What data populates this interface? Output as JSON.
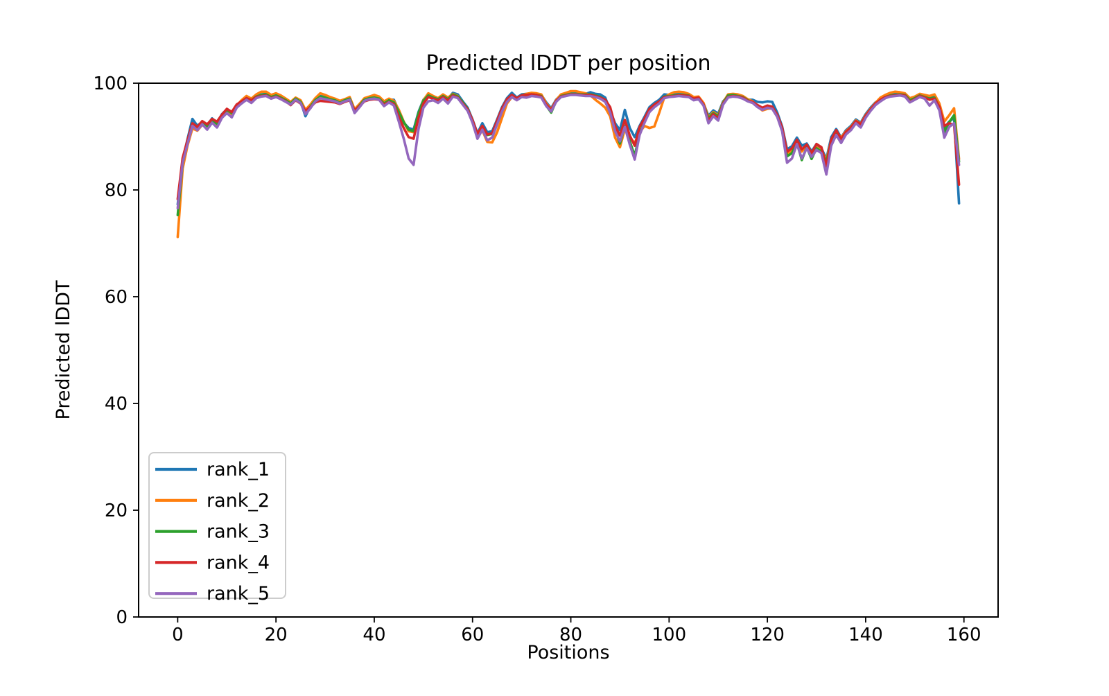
{
  "figure": {
    "title": "Predicted lDDT per position",
    "xlabel": "Positions",
    "ylabel": "Predicted lDDT",
    "background_color": "#ffffff",
    "spine_color": "#000000"
  },
  "axes": {
    "x_tick_labels": [
      "0",
      "20",
      "40",
      "60",
      "80",
      "100",
      "120",
      "140",
      "160"
    ],
    "x_tick_values": [
      0,
      20,
      40,
      60,
      80,
      100,
      120,
      140,
      160
    ],
    "y_tick_labels": [
      "0",
      "20",
      "40",
      "60",
      "80",
      "100"
    ],
    "y_tick_values": [
      0,
      20,
      40,
      60,
      80,
      100
    ]
  },
  "legend": {
    "position": "lower left",
    "entries": [
      {
        "label": "rank_1",
        "color": "#1f77b4"
      },
      {
        "label": "rank_2",
        "color": "#ff7f0e"
      },
      {
        "label": "rank_3",
        "color": "#2ca02c"
      },
      {
        "label": "rank_4",
        "color": "#d62728"
      },
      {
        "label": "rank_5",
        "color": "#9467bd"
      }
    ]
  },
  "chart_data": {
    "type": "line",
    "title": "Predicted lDDT per position",
    "xlabel": "Positions",
    "ylabel": "Predicted lDDT",
    "grid": false,
    "legend_position": "lower left",
    "xlim": [
      -7.95,
      166.95
    ],
    "ylim": [
      0,
      100
    ],
    "x_start": 0,
    "x_step": 1,
    "n_points": 160,
    "series": [
      {
        "name": "rank_1",
        "color": "#1f77b4",
        "values": [
          77.3,
          85.6,
          89.5,
          93.3,
          92,
          92.8,
          92.1,
          93.4,
          92.6,
          94.2,
          95.1,
          94.5,
          95.9,
          96.6,
          97.3,
          96.9,
          97.6,
          97.9,
          98,
          97.5,
          97.8,
          97.4,
          96.9,
          96.3,
          97.2,
          96.6,
          93.8,
          95.7,
          96.9,
          97.6,
          97.4,
          97.1,
          96.9,
          96.4,
          96.9,
          97.2,
          94.5,
          95.9,
          96.9,
          97.2,
          97.3,
          97.2,
          96.3,
          96.9,
          96.9,
          94.8,
          92.6,
          91.6,
          91.3,
          94.6,
          96.9,
          97.9,
          97.4,
          97.1,
          97.8,
          97.1,
          98.2,
          97.9,
          96.6,
          95.4,
          93.2,
          90.6,
          92.5,
          90.8,
          91,
          93.2,
          95.5,
          97.2,
          98.2,
          97.3,
          97.9,
          98,
          98.1,
          98,
          97.8,
          96.4,
          95.3,
          96.9,
          97.8,
          98,
          98.3,
          98.2,
          98.1,
          98,
          98.3,
          98,
          97.9,
          97.3,
          94.9,
          92.5,
          91.2,
          95,
          91.6,
          89.9,
          92,
          93.7,
          95.5,
          96.3,
          96.9,
          97.9,
          97.8,
          97.9,
          98,
          97.9,
          97.8,
          97.2,
          97.4,
          96.2,
          93.9,
          94.9,
          94.3,
          96.6,
          97.6,
          97.8,
          97.7,
          97.5,
          96.9,
          96.9,
          96.5,
          96.4,
          96.6,
          96.5,
          94.5,
          91.9,
          87.6,
          88.2,
          89.8,
          88.3,
          88.7,
          87.2,
          88.6,
          87.8,
          85.8,
          89.9,
          91.4,
          89.8,
          91.2,
          92,
          93.2,
          92.6,
          94.2,
          95.4,
          96.4,
          97,
          97.6,
          97.9,
          98,
          98.1,
          97.9,
          97,
          97.4,
          97.9,
          97.6,
          97.2,
          97.4,
          95.8,
          91.6,
          92.8,
          93.5,
          77.5
        ]
      },
      {
        "name": "rank_2",
        "color": "#ff7f0e",
        "values": [
          71.2,
          84,
          88.3,
          91.5,
          91.1,
          92.2,
          91.7,
          92.8,
          92.2,
          93.8,
          94.9,
          94.2,
          95.8,
          96.8,
          97.6,
          97.1,
          97.9,
          98.4,
          98.4,
          97.8,
          98.1,
          97.7,
          97.1,
          96.5,
          97.3,
          96.8,
          95,
          96,
          97.2,
          98.1,
          97.8,
          97.4,
          97.1,
          96.7,
          97,
          97.4,
          95.1,
          96.1,
          97.2,
          97.5,
          97.8,
          97.5,
          96.6,
          97.1,
          96.7,
          95,
          92.8,
          91,
          90.8,
          94.3,
          96.8,
          98.1,
          97.6,
          97.2,
          97.9,
          97.3,
          98,
          97.6,
          96.3,
          95,
          92.8,
          90,
          91.2,
          89,
          88.9,
          90.8,
          93.5,
          96.2,
          97.4,
          97,
          97.7,
          98,
          98.2,
          98.1,
          97.9,
          96.2,
          95.1,
          96.8,
          97.9,
          98.2,
          98.5,
          98.5,
          98.3,
          98.1,
          97.7,
          96.9,
          96.2,
          95.4,
          93.8,
          89.8,
          88,
          91.4,
          89.8,
          88.8,
          90.8,
          92,
          91.6,
          91.9,
          94.5,
          97.3,
          97.9,
          98.3,
          98.4,
          98.3,
          98,
          97.4,
          97.5,
          96.3,
          93.6,
          94.6,
          94,
          96.4,
          97.9,
          98,
          97.9,
          97.6,
          97,
          96.6,
          95.6,
          94.9,
          95.2,
          95.3,
          93.8,
          91.2,
          86.8,
          87.4,
          89.2,
          87.2,
          88.3,
          86.6,
          88,
          87.4,
          85.6,
          89.3,
          90.8,
          89.8,
          91,
          91.8,
          93,
          92.4,
          94,
          95.2,
          96.3,
          97.3,
          97.8,
          98.2,
          98.4,
          98.3,
          98.1,
          97.2,
          97.5,
          98,
          97.8,
          97.6,
          97.9,
          96.2,
          92.8,
          94,
          95.3,
          85.8
        ]
      },
      {
        "name": "rank_3",
        "color": "#2ca02c",
        "values": [
          75.3,
          85,
          88.9,
          92.2,
          91.5,
          92.6,
          92,
          93.1,
          92.4,
          94,
          95,
          94.4,
          95.8,
          96.5,
          97.2,
          96.8,
          97.5,
          97.8,
          97.9,
          97.4,
          97.7,
          97.3,
          96.8,
          96.2,
          97.1,
          96.5,
          94.6,
          95.6,
          96.8,
          97.5,
          97.3,
          97,
          96.8,
          96.3,
          96.8,
          97.1,
          94.8,
          95.8,
          96.9,
          97.2,
          97.3,
          97.1,
          96.2,
          96.8,
          96.4,
          94.6,
          92.7,
          91.3,
          91,
          94.4,
          96.7,
          97.7,
          97.3,
          97,
          97.6,
          97,
          97.9,
          97.5,
          96.4,
          95.2,
          93,
          90.3,
          91.4,
          90.3,
          90.5,
          92.8,
          95.1,
          96.9,
          97.7,
          97.1,
          97.7,
          97.8,
          97.9,
          97.8,
          97.6,
          95.8,
          94.5,
          96.6,
          97.6,
          97.8,
          98,
          98,
          97.9,
          97.9,
          97.9,
          97.7,
          97.4,
          96.8,
          95.3,
          91.5,
          88.7,
          92,
          89.1,
          86.4,
          90.5,
          92.8,
          94.8,
          95.7,
          96.5,
          97.5,
          97.6,
          97.7,
          97.8,
          97.8,
          97.7,
          96.9,
          97.2,
          96,
          93.4,
          94.4,
          93.8,
          96.3,
          97.7,
          97.8,
          97.6,
          97.4,
          96.8,
          96.4,
          95.7,
          95.2,
          95.5,
          95.4,
          93.9,
          91.4,
          86.3,
          86.9,
          88.9,
          85.6,
          88,
          85.8,
          87.8,
          87.2,
          85.3,
          89,
          90.6,
          89.3,
          90.8,
          91.6,
          92.8,
          92.2,
          93.8,
          95,
          96.1,
          96.8,
          97.4,
          97.7,
          97.8,
          97.9,
          97.8,
          96.8,
          97.2,
          97.7,
          97.4,
          97.1,
          97.3,
          95.5,
          90.8,
          92.7,
          94,
          85.3
        ]
      },
      {
        "name": "rank_4",
        "color": "#d62728",
        "values": [
          78.3,
          86,
          89.3,
          92.5,
          91.8,
          92.9,
          92.3,
          93.3,
          92.8,
          94.1,
          95.2,
          94.6,
          96,
          96.6,
          97.2,
          96.8,
          97.4,
          97.6,
          97.7,
          97.2,
          97.5,
          97.1,
          96.6,
          95.9,
          96.8,
          96.2,
          94.8,
          95.5,
          96.4,
          96.7,
          96.6,
          96.5,
          96.4,
          96.1,
          96.5,
          96.8,
          94.9,
          95.7,
          96.6,
          96.9,
          97,
          96.9,
          96,
          96.5,
          96.1,
          93.7,
          91.6,
          89.9,
          89.6,
          93.5,
          96.2,
          97.4,
          97.1,
          96.8,
          97.4,
          96.8,
          97.7,
          97.3,
          96.2,
          95.1,
          93.1,
          90.5,
          92,
          90.4,
          90.6,
          93,
          95.3,
          97,
          97.8,
          97.2,
          97.7,
          97.8,
          97.9,
          97.8,
          97.5,
          96,
          95,
          96.7,
          97.5,
          97.7,
          97.9,
          97.9,
          97.8,
          97.8,
          97.8,
          97.6,
          97.3,
          96.9,
          95.5,
          92,
          90.2,
          93.1,
          90.2,
          88.3,
          91.8,
          93.4,
          95.2,
          96,
          96.6,
          97.4,
          97.5,
          97.6,
          97.7,
          97.7,
          97.6,
          97.1,
          97.3,
          96,
          93,
          94.2,
          93.4,
          96.2,
          97.4,
          97.6,
          97.5,
          97.3,
          96.7,
          96.5,
          95.9,
          95.4,
          95.8,
          95.6,
          94.1,
          91.7,
          87.2,
          87.8,
          89.4,
          87.6,
          88.5,
          86.9,
          88.6,
          88,
          84.4,
          89.5,
          91.2,
          89.5,
          90.9,
          91.7,
          92.9,
          92.3,
          93.9,
          95.1,
          96.2,
          96.9,
          97.4,
          97.6,
          97.7,
          97.8,
          97.7,
          96.5,
          97,
          97.6,
          97.3,
          96.9,
          97.1,
          95.6,
          92,
          92.5,
          92.2,
          81
        ]
      },
      {
        "name": "rank_5",
        "color": "#9467bd",
        "values": [
          76.6,
          85.1,
          88.6,
          92,
          91.2,
          92.3,
          91.3,
          92.6,
          91.7,
          93.5,
          94.4,
          93.6,
          95.4,
          96.2,
          96.9,
          96.3,
          97.2,
          97.5,
          97.6,
          97.1,
          97.4,
          97,
          96.5,
          96,
          96.9,
          96.3,
          94.2,
          95.3,
          96.6,
          97.2,
          97,
          96.8,
          96.6,
          96.2,
          96.6,
          96.9,
          94.4,
          95.5,
          96.7,
          97,
          97.1,
          96.9,
          95.7,
          96.4,
          95.8,
          92.8,
          89.6,
          85.9,
          84.7,
          91.4,
          95.4,
          96.6,
          96.8,
          96.3,
          97.1,
          96.2,
          97.5,
          97.2,
          96,
          94.8,
          92.6,
          89.6,
          91.3,
          89.3,
          89.8,
          92.3,
          94.7,
          96.5,
          97.4,
          96.8,
          97.4,
          97.3,
          97.6,
          97.5,
          97.3,
          95.7,
          94.7,
          96.5,
          97.4,
          97.6,
          97.8,
          97.8,
          97.7,
          97.6,
          97.6,
          97.4,
          97.1,
          96.5,
          94.5,
          91,
          89.1,
          91.8,
          88.5,
          85.7,
          90.3,
          92.6,
          94.6,
          95.5,
          96.2,
          97.2,
          97.4,
          97.5,
          97.6,
          97.5,
          97.4,
          96.8,
          97,
          95.8,
          92.5,
          93.8,
          93,
          96,
          97.3,
          97.5,
          97.4,
          97.1,
          96.6,
          96.3,
          95.5,
          95,
          95.4,
          95.2,
          93.7,
          91,
          85.1,
          85.9,
          88.6,
          85.9,
          87.8,
          86.2,
          87.5,
          86.9,
          82.9,
          88.3,
          90.3,
          88.8,
          90.4,
          91.2,
          92.5,
          91.7,
          93.5,
          94.8,
          95.9,
          96.6,
          97.2,
          97.5,
          97.6,
          97.7,
          97.5,
          96.4,
          96.9,
          97.4,
          97.1,
          95.8,
          96.8,
          94.9,
          89.8,
          91.8,
          92.5,
          84.7
        ]
      }
    ]
  }
}
